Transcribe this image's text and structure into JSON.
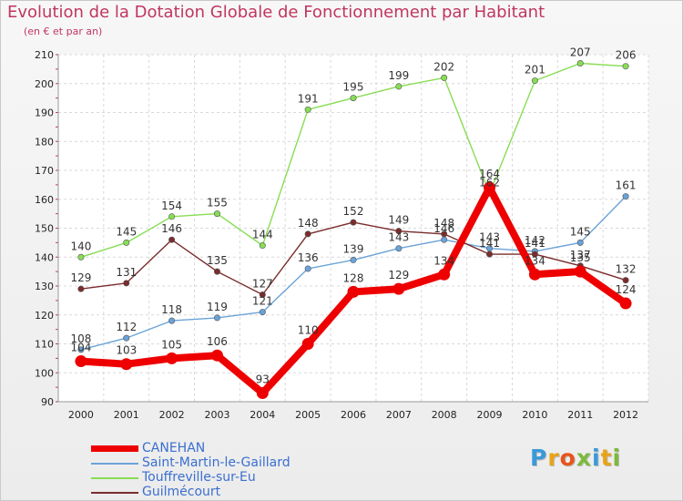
{
  "chart_data": {
    "type": "line",
    "title": "Evolution de la Dotation Globale de Fonctionnement par Habitant",
    "subtitle": "(en € et par an)",
    "x": [
      "2000",
      "2001",
      "2002",
      "2003",
      "2004",
      "2005",
      "2006",
      "2007",
      "2008",
      "2009",
      "2010",
      "2011",
      "2012"
    ],
    "ylim": [
      90,
      210
    ],
    "yticks": [
      90,
      100,
      110,
      120,
      130,
      140,
      150,
      160,
      170,
      180,
      190,
      200,
      210
    ],
    "grid": true,
    "legend_position": "bottom-left",
    "series": [
      {
        "name": "CANEHAN",
        "color": "#ee0000",
        "values": [
          104,
          103,
          105,
          106,
          93,
          110,
          128,
          129,
          134,
          164,
          134,
          135,
          124
        ],
        "labels": [
          "104",
          "103",
          "105",
          "106",
          "93",
          "110",
          "128",
          "129",
          "134",
          "164",
          "134",
          "135",
          "124"
        ]
      },
      {
        "name": "Saint-Martin-le-Gaillard",
        "color": "#6aa3d8",
        "values": [
          108,
          112,
          118,
          119,
          121,
          136,
          139,
          143,
          146,
          143,
          142,
          145,
          161
        ],
        "labels": [
          "108",
          "112",
          "118",
          "119",
          "121",
          "136",
          "139",
          "143",
          "146",
          "143",
          "142",
          "145",
          "161"
        ]
      },
      {
        "name": "Touffreville-sur-Eu",
        "color": "#88dd55",
        "values": [
          140,
          145,
          154,
          155,
          144,
          191,
          195,
          199,
          202,
          162,
          201,
          207,
          206
        ],
        "labels": [
          "140",
          "145",
          "154",
          "155",
          "144",
          "191",
          "195",
          "199",
          "202",
          "162",
          "201",
          "207",
          "206"
        ]
      },
      {
        "name": "Guilmécourt",
        "color": "#7a2c2c",
        "values": [
          129,
          131,
          146,
          135,
          127,
          148,
          152,
          149,
          148,
          141,
          141,
          137,
          132
        ],
        "labels": [
          "129",
          "131",
          "146",
          "135",
          "127",
          "148",
          "152",
          "149",
          "148",
          "141",
          "141",
          "137",
          "132"
        ]
      }
    ]
  },
  "brand": {
    "letters": [
      "P",
      "r",
      "o",
      "x",
      "i",
      "t",
      "i"
    ],
    "colors": [
      "#3a9ad9",
      "#e8a317",
      "#e8541a",
      "#7cba3d",
      "#3a9ad9",
      "#e8a317",
      "#7cba3d"
    ]
  }
}
